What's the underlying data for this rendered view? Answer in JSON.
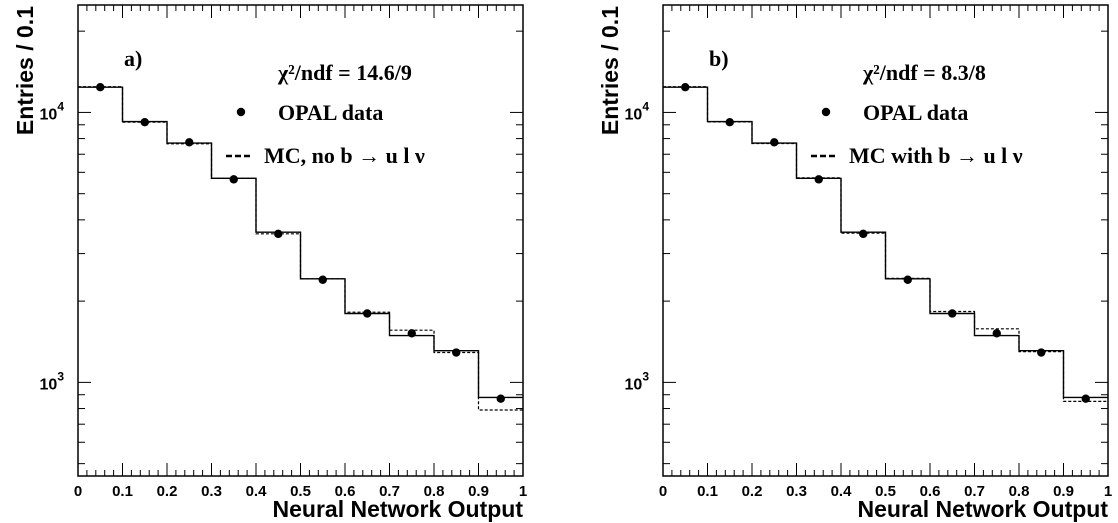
{
  "chart_data": [
    {
      "type": "bar",
      "panel_label": "a)",
      "chi2_label": "χ²/ndf = 14.6/9",
      "legend": [
        {
          "marker": "dot",
          "label": "OPAL data"
        },
        {
          "marker": "dashed",
          "label": "MC, no  b → u l ν"
        }
      ],
      "xlabel": "Neural Network Output",
      "ylabel": "Entries / 0.1",
      "xlim": [
        0,
        1
      ],
      "ylim": [
        450,
        25000
      ],
      "yscale": "log",
      "xticks": [
        "0",
        "0.1",
        "0.2",
        "0.3",
        "0.4",
        "0.5",
        "0.6",
        "0.7",
        "0.8",
        "0.9",
        "1"
      ],
      "yticks": [
        "10",
        "10"
      ],
      "ytick_exponents": [
        "4",
        "3"
      ],
      "bin_edges": [
        0,
        0.1,
        0.2,
        0.3,
        0.4,
        0.5,
        0.6,
        0.7,
        0.8,
        0.9,
        1.0
      ],
      "series": [
        {
          "name": "OPAL data",
          "style": "points",
          "values": [
            12400,
            9200,
            7750,
            5650,
            3550,
            2400,
            1800,
            1520,
            1290,
            870
          ]
        },
        {
          "style": "solid",
          "values": [
            12400,
            9250,
            7700,
            5700,
            3600,
            2420,
            1800,
            1490,
            1310,
            880
          ]
        },
        {
          "style": "dashed",
          "values": [
            12450,
            9200,
            7650,
            5700,
            3550,
            2420,
            1820,
            1560,
            1290,
            790
          ]
        }
      ]
    },
    {
      "type": "bar",
      "panel_label": "b)",
      "chi2_label": "χ²/ndf = 8.3/8",
      "legend": [
        {
          "marker": "dot",
          "label": "OPAL data"
        },
        {
          "marker": "dashed",
          "label": "MC with b → u l ν"
        }
      ],
      "xlabel": "Neural Network Output",
      "ylabel": "Entries / 0.1",
      "xlim": [
        0,
        1
      ],
      "ylim": [
        450,
        25000
      ],
      "yscale": "log",
      "xticks": [
        "0",
        "0.1",
        "0.2",
        "0.3",
        "0.4",
        "0.5",
        "0.6",
        "0.7",
        "0.8",
        "0.9",
        "1"
      ],
      "yticks": [
        "10",
        "10"
      ],
      "ytick_exponents": [
        "4",
        "3"
      ],
      "bin_edges": [
        0,
        0.1,
        0.2,
        0.3,
        0.4,
        0.5,
        0.6,
        0.7,
        0.8,
        0.9,
        1.0
      ],
      "series": [
        {
          "name": "OPAL data",
          "style": "points",
          "values": [
            12400,
            9200,
            7750,
            5650,
            3550,
            2400,
            1800,
            1520,
            1290,
            870
          ]
        },
        {
          "style": "solid",
          "values": [
            12400,
            9250,
            7700,
            5700,
            3600,
            2420,
            1800,
            1490,
            1310,
            880
          ]
        },
        {
          "style": "dashed",
          "values": [
            12450,
            9220,
            7670,
            5720,
            3570,
            2430,
            1830,
            1580,
            1300,
            850
          ]
        }
      ]
    }
  ]
}
